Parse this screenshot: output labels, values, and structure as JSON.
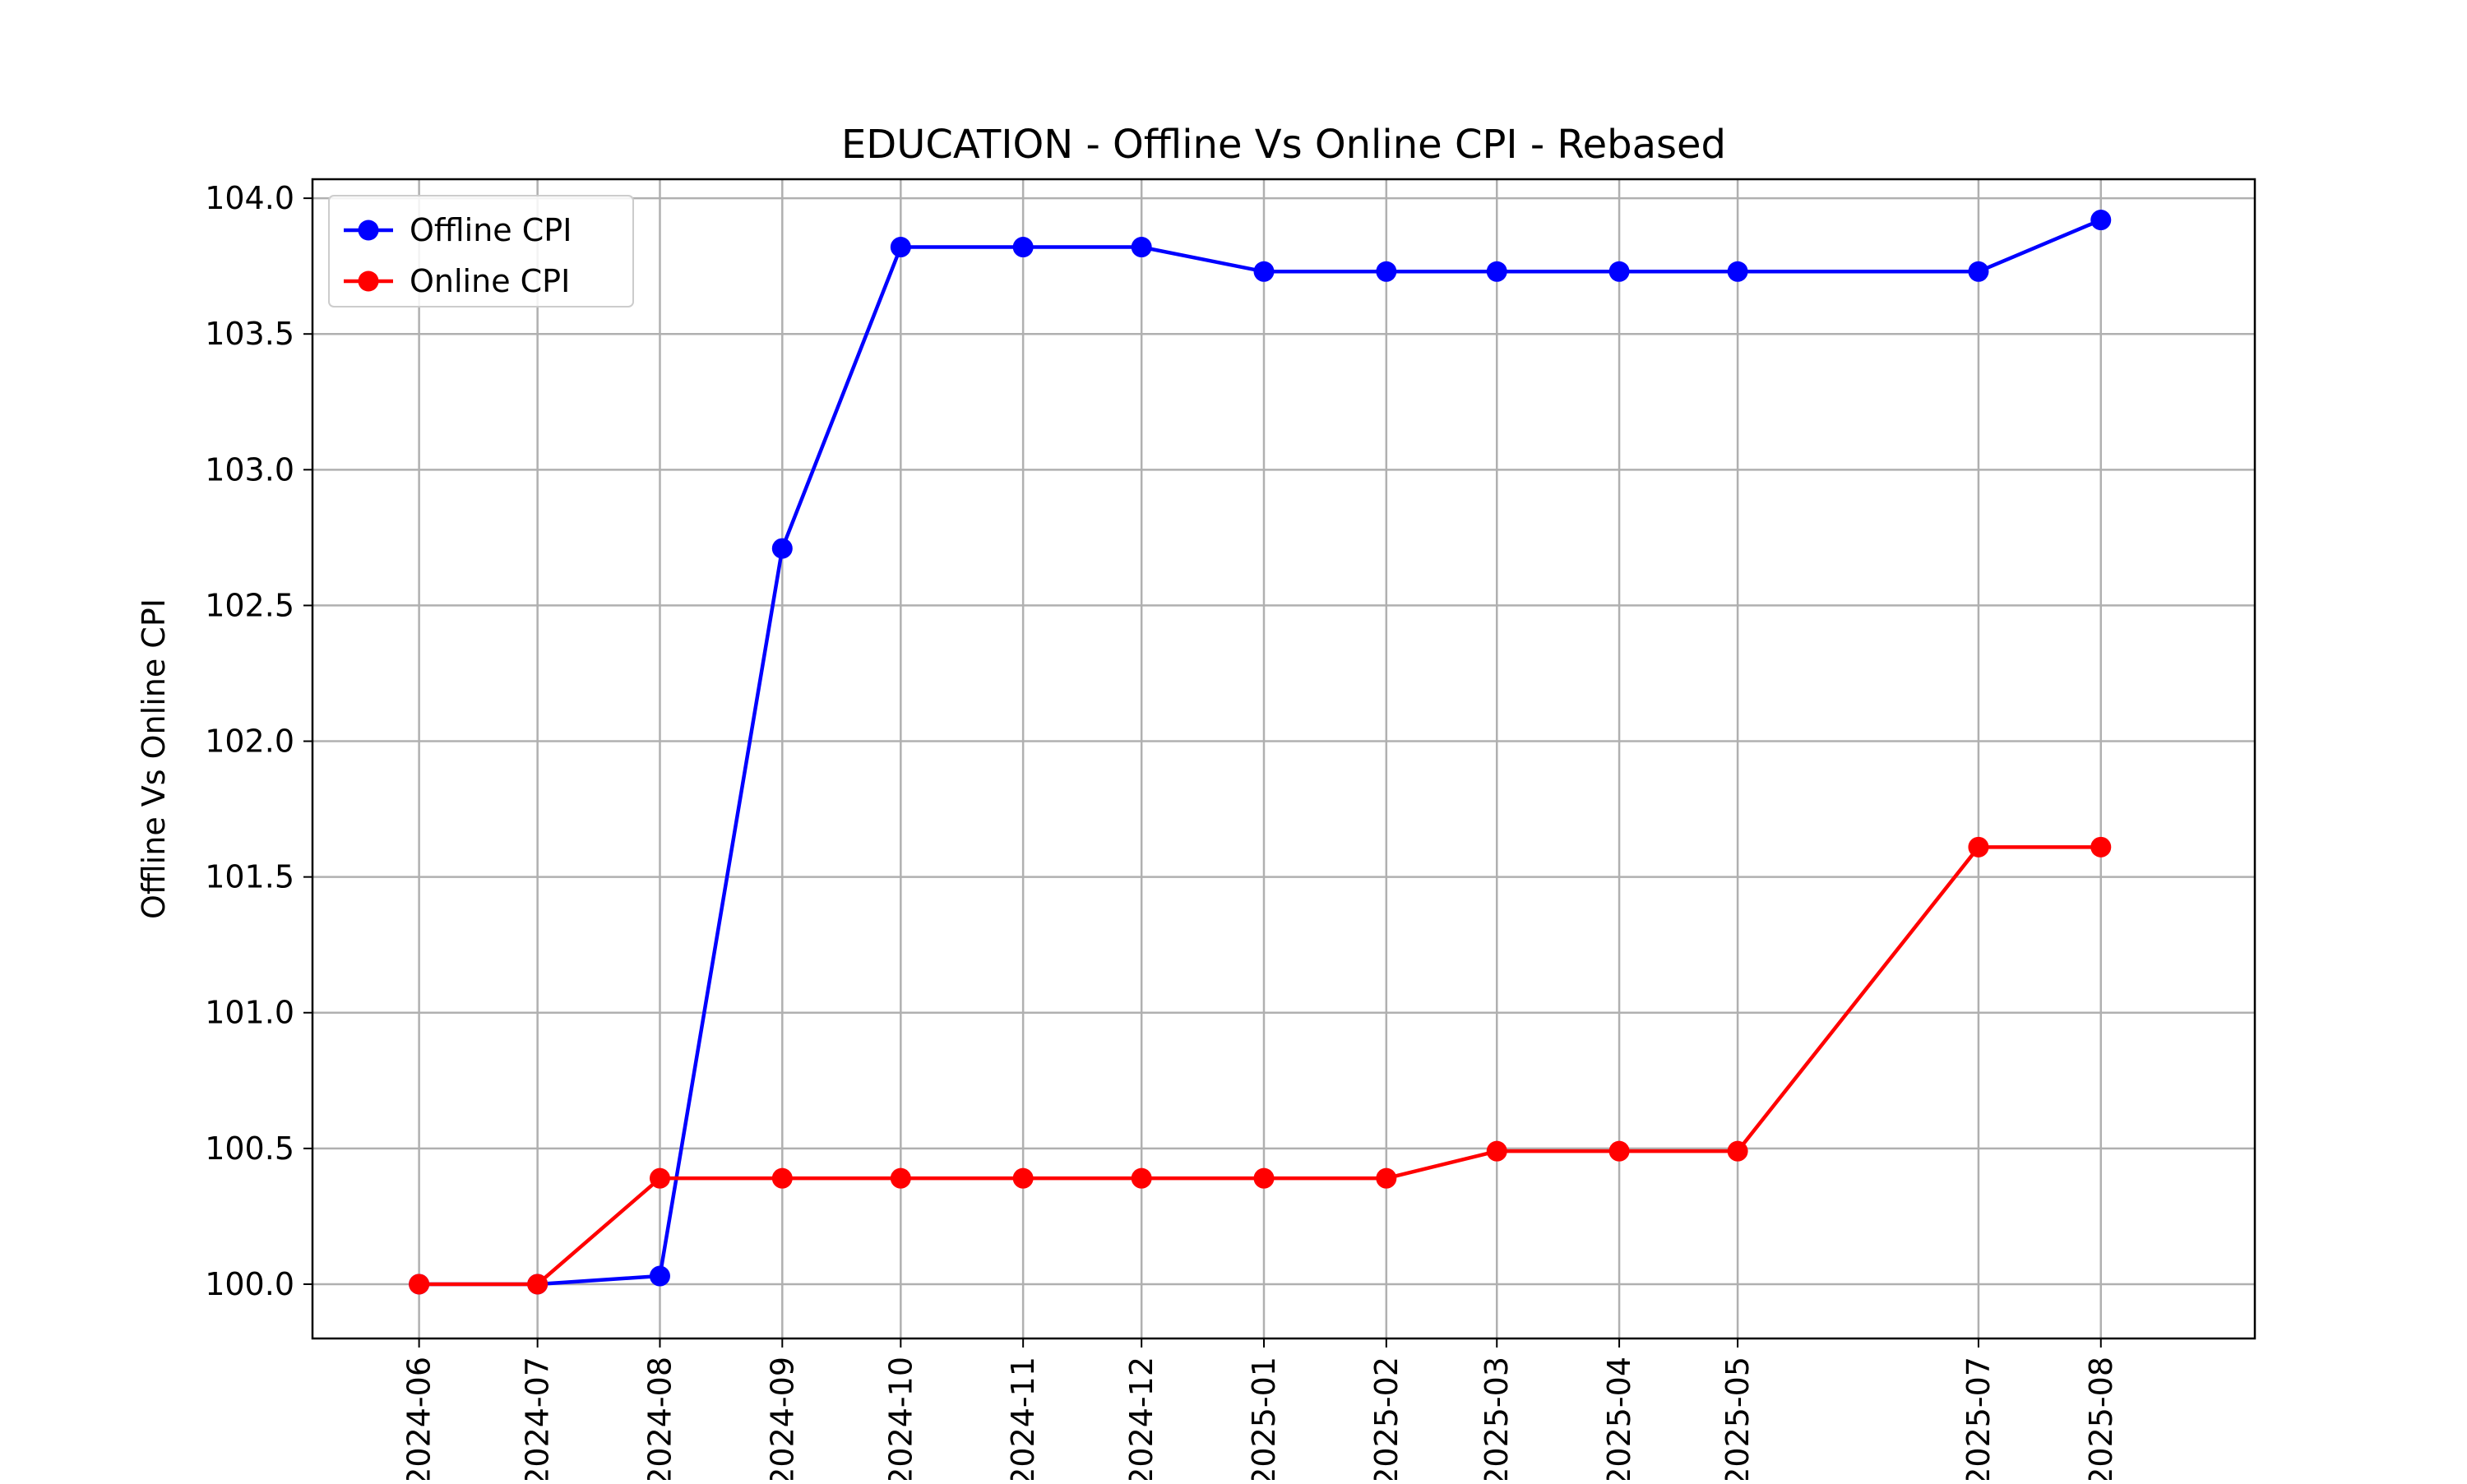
{
  "chart_data": {
    "type": "line",
    "title": "EDUCATION - Offline Vs Online CPI - Rebased",
    "xlabel": "",
    "ylabel": "Offline Vs Online CPI",
    "x": [
      "2024-06",
      "2024-07",
      "2024-08",
      "2024-09",
      "2024-10",
      "2024-11",
      "2024-12",
      "2025-01",
      "2025-02",
      "2025-03",
      "2025-04",
      "2025-05",
      "2025-07",
      "2025-08"
    ],
    "x_axis": "date-monthly",
    "xlim": [
      "2024-05-05",
      "2025-09-09"
    ],
    "ylim": [
      99.8,
      104.07
    ],
    "yticks": [
      100.0,
      100.5,
      101.0,
      101.5,
      102.0,
      102.5,
      103.0,
      103.5,
      104.0
    ],
    "ytick_labels": [
      "100.0",
      "100.5",
      "101.0",
      "101.5",
      "102.0",
      "102.5",
      "103.0",
      "103.5",
      "104.0"
    ],
    "grid": true,
    "legend_position": "top-left",
    "series": [
      {
        "name": "Offline CPI",
        "color": "#0000ff",
        "marker": "circle",
        "values": [
          100.0,
          100.0,
          100.03,
          102.71,
          103.82,
          103.82,
          103.82,
          103.73,
          103.73,
          103.73,
          103.73,
          103.73,
          103.73,
          103.92
        ]
      },
      {
        "name": "Online CPI",
        "color": "#ff0000",
        "marker": "circle",
        "values": [
          100.0,
          100.0,
          100.39,
          100.39,
          100.39,
          100.39,
          100.39,
          100.39,
          100.39,
          100.49,
          100.49,
          100.49,
          101.61,
          101.61
        ]
      }
    ]
  }
}
